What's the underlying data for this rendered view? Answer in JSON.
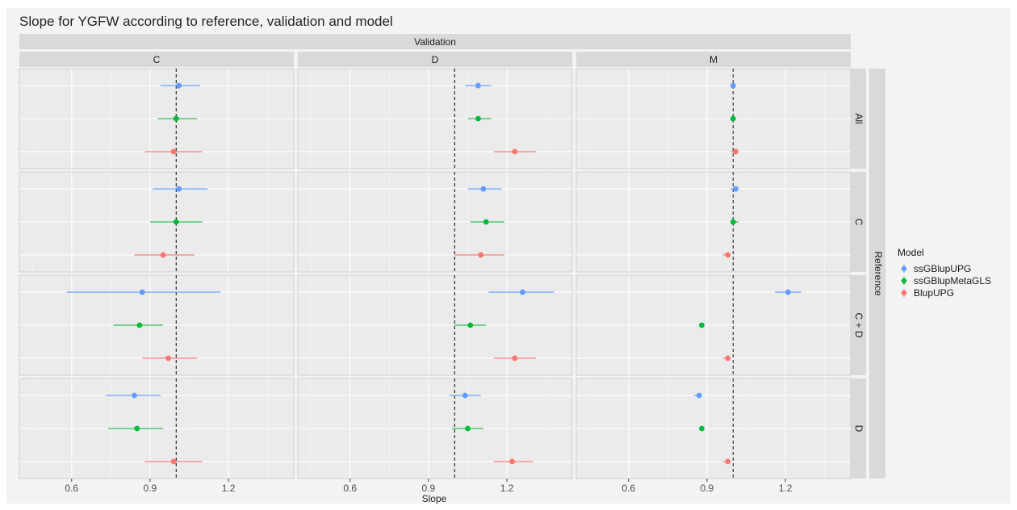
{
  "chart_data": {
    "type": "scatter",
    "subtype": "faceted point-range (estimate with interval)",
    "title": "Slope for YGFW according to reference, validation and model",
    "xlabel": "Slope",
    "column_facet_label": "Validation",
    "row_facet_label": "Reference",
    "columns": [
      "C",
      "D",
      "M"
    ],
    "rows": [
      "All",
      "C",
      "C + D",
      "D"
    ],
    "xlim": [
      0.4,
      1.45
    ],
    "xticks": [
      0.6,
      0.9,
      1.2
    ],
    "xtick_labels": [
      "0.6",
      "0.9",
      "1.2"
    ],
    "reference_line_x": 1.0,
    "grid": true,
    "legend": {
      "title": "Model",
      "position": "right",
      "items": [
        {
          "name": "ssGBlupUPG",
          "color": "#619CFF"
        },
        {
          "name": "ssGBlupMetaGLS",
          "color": "#00BA38"
        },
        {
          "name": "BlupUPG",
          "color": "#F8766D"
        }
      ]
    },
    "series": [
      {
        "name": "ssGBlupUPG",
        "color": "#619CFF",
        "points": [
          {
            "reference": "All",
            "validation": "C",
            "value": 1.01,
            "lower": 0.94,
            "upper": 1.09
          },
          {
            "reference": "All",
            "validation": "D",
            "value": 1.09,
            "lower": 1.04,
            "upper": 1.14
          },
          {
            "reference": "All",
            "validation": "M",
            "value": 1.0,
            "lower": 0.99,
            "upper": 1.01
          },
          {
            "reference": "C",
            "validation": "C",
            "value": 1.01,
            "lower": 0.91,
            "upper": 1.12
          },
          {
            "reference": "C",
            "validation": "D",
            "value": 1.11,
            "lower": 1.05,
            "upper": 1.18
          },
          {
            "reference": "C",
            "validation": "M",
            "value": 1.01,
            "lower": 0.99,
            "upper": 1.02
          },
          {
            "reference": "C + D",
            "validation": "C",
            "value": 0.87,
            "lower": 0.58,
            "upper": 1.17
          },
          {
            "reference": "C + D",
            "validation": "D",
            "value": 1.26,
            "lower": 1.13,
            "upper": 1.38
          },
          {
            "reference": "C + D",
            "validation": "M",
            "value": 1.21,
            "lower": 1.16,
            "upper": 1.26
          },
          {
            "reference": "D",
            "validation": "C",
            "value": 0.84,
            "lower": 0.73,
            "upper": 0.94
          },
          {
            "reference": "D",
            "validation": "D",
            "value": 1.04,
            "lower": 0.98,
            "upper": 1.1
          },
          {
            "reference": "D",
            "validation": "M",
            "value": 0.87,
            "lower": 0.85,
            "upper": 0.88
          }
        ]
      },
      {
        "name": "ssGBlupMetaGLS",
        "color": "#00BA38",
        "points": [
          {
            "reference": "All",
            "validation": "C",
            "value": 1.0,
            "lower": 0.93,
            "upper": 1.08
          },
          {
            "reference": "All",
            "validation": "D",
            "value": 1.09,
            "lower": 1.05,
            "upper": 1.14
          },
          {
            "reference": "All",
            "validation": "M",
            "value": 1.0,
            "lower": 0.99,
            "upper": 1.01
          },
          {
            "reference": "C",
            "validation": "C",
            "value": 1.0,
            "lower": 0.9,
            "upper": 1.1
          },
          {
            "reference": "C",
            "validation": "D",
            "value": 1.12,
            "lower": 1.06,
            "upper": 1.19
          },
          {
            "reference": "C",
            "validation": "M",
            "value": 1.0,
            "lower": 0.99,
            "upper": 1.02
          },
          {
            "reference": "C + D",
            "validation": "C",
            "value": 0.86,
            "lower": 0.76,
            "upper": 0.95
          },
          {
            "reference": "C + D",
            "validation": "D",
            "value": 1.06,
            "lower": 1.0,
            "upper": 1.12
          },
          {
            "reference": "C + D",
            "validation": "M",
            "value": 0.88,
            "lower": 0.87,
            "upper": 0.89
          },
          {
            "reference": "D",
            "validation": "C",
            "value": 0.85,
            "lower": 0.74,
            "upper": 0.95
          },
          {
            "reference": "D",
            "validation": "D",
            "value": 1.05,
            "lower": 0.99,
            "upper": 1.11
          },
          {
            "reference": "D",
            "validation": "M",
            "value": 0.88,
            "lower": 0.87,
            "upper": 0.89
          }
        ]
      },
      {
        "name": "BlupUPG",
        "color": "#F8766D",
        "points": [
          {
            "reference": "All",
            "validation": "C",
            "value": 0.99,
            "lower": 0.88,
            "upper": 1.1
          },
          {
            "reference": "All",
            "validation": "D",
            "value": 1.23,
            "lower": 1.15,
            "upper": 1.31
          },
          {
            "reference": "All",
            "validation": "M",
            "value": 1.01,
            "lower": 0.99,
            "upper": 1.02
          },
          {
            "reference": "C",
            "validation": "C",
            "value": 0.95,
            "lower": 0.84,
            "upper": 1.07
          },
          {
            "reference": "C",
            "validation": "D",
            "value": 1.1,
            "lower": 1.0,
            "upper": 1.19
          },
          {
            "reference": "C",
            "validation": "M",
            "value": 0.98,
            "lower": 0.96,
            "upper": 0.99
          },
          {
            "reference": "C + D",
            "validation": "C",
            "value": 0.97,
            "lower": 0.87,
            "upper": 1.08
          },
          {
            "reference": "C + D",
            "validation": "D",
            "value": 1.23,
            "lower": 1.15,
            "upper": 1.31
          },
          {
            "reference": "C + D",
            "validation": "M",
            "value": 0.98,
            "lower": 0.96,
            "upper": 0.99
          },
          {
            "reference": "D",
            "validation": "C",
            "value": 0.99,
            "lower": 0.88,
            "upper": 1.1
          },
          {
            "reference": "D",
            "validation": "D",
            "value": 1.22,
            "lower": 1.15,
            "upper": 1.3
          },
          {
            "reference": "D",
            "validation": "M",
            "value": 0.98,
            "lower": 0.96,
            "upper": 0.99
          }
        ]
      }
    ]
  }
}
